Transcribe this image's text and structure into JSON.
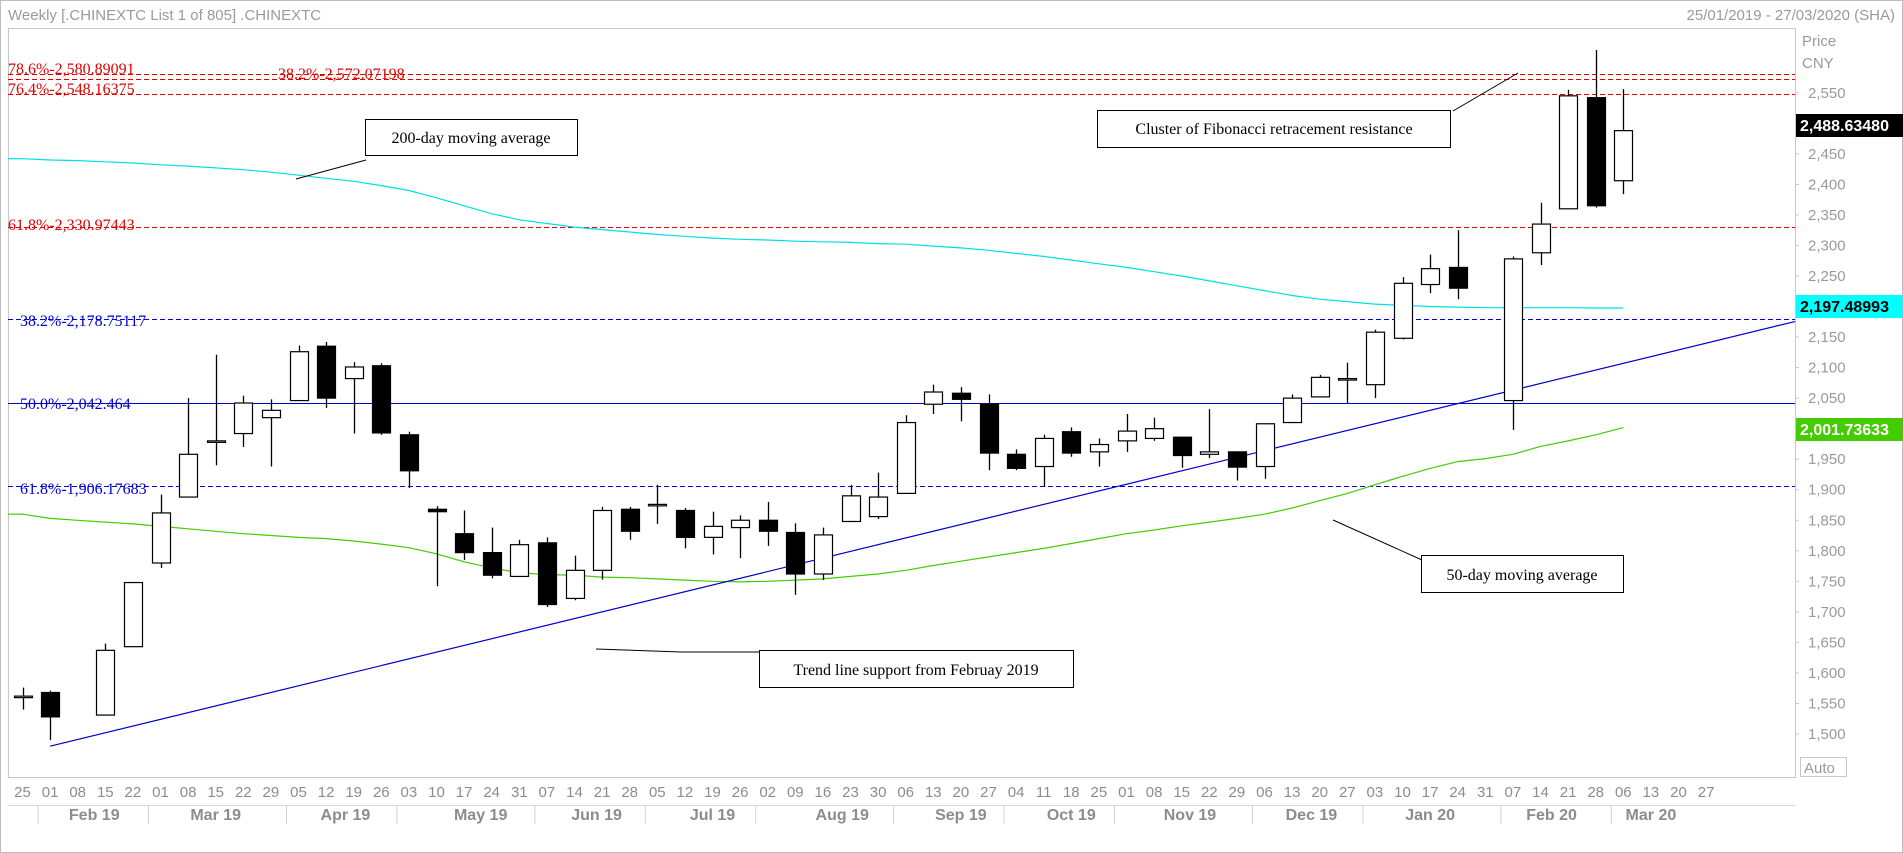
{
  "header": {
    "title": "Weekly [.CHINEXTC List 1 of 805] .CHINEXTC",
    "date_range": "25/01/2019 - 27/03/2020 (SHA)"
  },
  "axis": {
    "price_label": "Price",
    "currency_label": "CNY",
    "auto_label": "Auto",
    "y_ticks": [
      "2,550",
      "2,500",
      "2,450",
      "2,400",
      "2,350",
      "2,300",
      "2,250",
      "2,200",
      "2,150",
      "2,100",
      "2,050",
      "2,000",
      "1,950",
      "1,900",
      "1,850",
      "1,800",
      "1,750",
      "1,700",
      "1,650",
      "1,600",
      "1,550",
      "1,500"
    ],
    "x_day_labels": [
      "25",
      "01",
      "08",
      "15",
      "22",
      "01",
      "08",
      "15",
      "22",
      "29",
      "05",
      "12",
      "19",
      "26",
      "03",
      "10",
      "17",
      "24",
      "31",
      "07",
      "14",
      "21",
      "28",
      "05",
      "12",
      "19",
      "26",
      "02",
      "09",
      "16",
      "23",
      "30",
      "06",
      "13",
      "20",
      "27",
      "04",
      "11",
      "18",
      "25",
      "01",
      "08",
      "15",
      "22",
      "29",
      "06",
      "13",
      "20",
      "27",
      "03",
      "10",
      "17",
      "24",
      "31",
      "07",
      "14",
      "21",
      "28",
      "06",
      "13",
      "20",
      "27"
    ],
    "x_month_labels": [
      "Feb 19",
      "Mar 19",
      "Apr 19",
      "May 19",
      "Jun 19",
      "Jul 19",
      "Aug 19",
      "Sep 19",
      "Oct 19",
      "Nov 19",
      "Dec 19",
      "Jan 20",
      "Feb 20",
      "Mar 20"
    ]
  },
  "fib_labels": {
    "r786": "78.6%-2,580.89091",
    "r382_top": "38.2%-2,572.07198",
    "r764": "76.4%-2,548.16375",
    "r618_top": "61.8%-2,330.97443",
    "b382": "38.2%-2,178.75117",
    "b500": "50.0%-2,042.464",
    "b618": "61.8%-1,906.17683"
  },
  "annotations": {
    "ma200": "200-day moving average",
    "fib_cluster": "Cluster of Fibonacci retracement resistance",
    "ma50": "50-day moving average",
    "trend": "Trend line support from Februay 2019"
  },
  "tags": {
    "last_price": "2,488.63480",
    "ma200_value": "2,197.48993",
    "ma50_value": "2,001.73633"
  },
  "colors": {
    "fib_red": "#e00000",
    "fib_blue": "#0000d0",
    "ma200": "#00e0e0",
    "ma50": "#44cc00",
    "trend_line": "#0000cc",
    "candle_down": "#000000",
    "candle_up": "#ffffff",
    "tag_price_bg": "#000000",
    "tag_ma200_bg": "#00ffff",
    "tag_ma50_bg": "#44cc00"
  },
  "chart_data": {
    "type": "candlestick",
    "title": ".CHINEXTC",
    "interval": "weekly",
    "ylim": [
      1470,
      2640
    ],
    "grid": false,
    "week_labels": [
      "25 Jan 19",
      "01 Feb 19",
      "08 Feb 19",
      "15 Feb 19",
      "22 Feb 19",
      "01 Mar 19",
      "08 Mar 19",
      "15 Mar 19",
      "22 Mar 19",
      "29 Mar 19",
      "05 Apr 19",
      "12 Apr 19",
      "19 Apr 19",
      "26 Apr 19",
      "03 May 19",
      "10 May 19",
      "17 May 19",
      "24 May 19",
      "31 May 19",
      "07 Jun 19",
      "14 Jun 19",
      "21 Jun 19",
      "28 Jun 19",
      "05 Jul 19",
      "12 Jul 19",
      "19 Jul 19",
      "26 Jul 19",
      "02 Aug 19",
      "09 Aug 19",
      "16 Aug 19",
      "23 Aug 19",
      "30 Aug 19",
      "06 Sep 19",
      "13 Sep 19",
      "20 Sep 19",
      "27 Sep 19",
      "04 Oct 19",
      "11 Oct 19",
      "18 Oct 19",
      "25 Oct 19",
      "01 Nov 19",
      "08 Nov 19",
      "15 Nov 19",
      "22 Nov 19",
      "29 Nov 19",
      "06 Dec 19",
      "13 Dec 19",
      "20 Dec 19",
      "27 Dec 19",
      "03 Jan 20",
      "10 Jan 20",
      "17 Jan 20",
      "24 Jan 20",
      "31 Jan 20",
      "07 Feb 20",
      "14 Feb 20",
      "21 Feb 20",
      "28 Feb 20",
      "06 Mar 20",
      "13 Mar 20",
      "20 Mar 20",
      "27 Mar 20"
    ],
    "candles": [
      {
        "o": 1560,
        "h": 1576,
        "l": 1540,
        "c": 1562
      },
      {
        "o": 1568,
        "h": 1571,
        "l": 1490,
        "c": 1528
      },
      null,
      {
        "o": 1531,
        "h": 1648,
        "l": 1531,
        "c": 1637
      },
      {
        "o": 1643,
        "h": 1748,
        "l": 1643,
        "c": 1748
      },
      {
        "o": 1780,
        "h": 1892,
        "l": 1772,
        "c": 1862
      },
      {
        "o": 1888,
        "h": 2050,
        "l": 1888,
        "c": 1958
      },
      {
        "o": 1980,
        "h": 2121,
        "l": 1940,
        "c": 1980
      },
      {
        "o": 1992,
        "h": 2054,
        "l": 1970,
        "c": 2042
      },
      {
        "o": 2018,
        "h": 2048,
        "l": 1938,
        "c": 2030
      },
      {
        "o": 2046,
        "h": 2136,
        "l": 2046,
        "c": 2126
      },
      {
        "o": 2135,
        "h": 2142,
        "l": 2034,
        "c": 2050
      },
      {
        "o": 2082,
        "h": 2109,
        "l": 1992,
        "c": 2101
      },
      {
        "o": 2103,
        "h": 2107,
        "l": 1990,
        "c": 1993
      },
      {
        "o": 1990,
        "h": 1995,
        "l": 1903,
        "c": 1931
      },
      {
        "o": 1868,
        "h": 1873,
        "l": 1742,
        "c": 1864
      },
      {
        "o": 1828,
        "h": 1866,
        "l": 1785,
        "c": 1797
      },
      {
        "o": 1797,
        "h": 1838,
        "l": 1755,
        "c": 1760
      },
      {
        "o": 1758,
        "h": 1818,
        "l": 1758,
        "c": 1810
      },
      {
        "o": 1813,
        "h": 1822,
        "l": 1708,
        "c": 1712
      },
      {
        "o": 1722,
        "h": 1792,
        "l": 1719,
        "c": 1768
      },
      {
        "o": 1768,
        "h": 1872,
        "l": 1753,
        "c": 1866
      },
      {
        "o": 1868,
        "h": 1872,
        "l": 1818,
        "c": 1832
      },
      {
        "o": 1876,
        "h": 1908,
        "l": 1844,
        "c": 1876
      },
      {
        "o": 1866,
        "h": 1870,
        "l": 1804,
        "c": 1822
      },
      {
        "o": 1822,
        "h": 1864,
        "l": 1794,
        "c": 1840
      },
      {
        "o": 1838,
        "h": 1858,
        "l": 1788,
        "c": 1850
      },
      {
        "o": 1850,
        "h": 1880,
        "l": 1808,
        "c": 1832
      },
      {
        "o": 1830,
        "h": 1845,
        "l": 1728,
        "c": 1762
      },
      {
        "o": 1762,
        "h": 1838,
        "l": 1752,
        "c": 1826
      },
      {
        "o": 1848,
        "h": 1908,
        "l": 1848,
        "c": 1890
      },
      {
        "o": 1856,
        "h": 1928,
        "l": 1852,
        "c": 1888
      },
      {
        "o": 1894,
        "h": 2022,
        "l": 1894,
        "c": 2010
      },
      {
        "o": 2040,
        "h": 2072,
        "l": 2024,
        "c": 2060
      },
      {
        "o": 2058,
        "h": 2068,
        "l": 2012,
        "c": 2048
      },
      {
        "o": 2040,
        "h": 2056,
        "l": 1932,
        "c": 1960
      },
      {
        "o": 1958,
        "h": 1966,
        "l": 1932,
        "c": 1935
      },
      {
        "o": 1938,
        "h": 1990,
        "l": 1905,
        "c": 1984
      },
      {
        "o": 1995,
        "h": 2002,
        "l": 1954,
        "c": 1960
      },
      {
        "o": 1962,
        "h": 1984,
        "l": 1938,
        "c": 1974
      },
      {
        "o": 1980,
        "h": 2024,
        "l": 1962,
        "c": 1996
      },
      {
        "o": 1984,
        "h": 2018,
        "l": 1980,
        "c": 2000
      },
      {
        "o": 1986,
        "h": 1986,
        "l": 1936,
        "c": 1956
      },
      {
        "o": 1958,
        "h": 2032,
        "l": 1952,
        "c": 1962
      },
      {
        "o": 1962,
        "h": 1962,
        "l": 1915,
        "c": 1937
      },
      {
        "o": 1938,
        "h": 2008,
        "l": 1918,
        "c": 2008
      },
      {
        "o": 2010,
        "h": 2056,
        "l": 2010,
        "c": 2050
      },
      {
        "o": 2052,
        "h": 2088,
        "l": 2052,
        "c": 2084
      },
      {
        "o": 2082,
        "h": 2108,
        "l": 2042,
        "c": 2082
      },
      {
        "o": 2072,
        "h": 2162,
        "l": 2050,
        "c": 2158
      },
      {
        "o": 2148,
        "h": 2248,
        "l": 2146,
        "c": 2238
      },
      {
        "o": 2236,
        "h": 2285,
        "l": 2222,
        "c": 2262
      },
      {
        "o": 2264,
        "h": 2325,
        "l": 2212,
        "c": 2230
      },
      null,
      {
        "o": 2046,
        "h": 2282,
        "l": 1998,
        "c": 2278
      },
      {
        "o": 2288,
        "h": 2370,
        "l": 2268,
        "c": 2335
      },
      {
        "o": 2360,
        "h": 2555,
        "l": 2360,
        "c": 2545
      },
      {
        "o": 2542,
        "h": 2620,
        "l": 2362,
        "c": 2365
      },
      {
        "o": 2406,
        "h": 2556,
        "l": 2384,
        "c": 2488
      }
    ],
    "series": [
      {
        "name": "200-day moving average",
        "values": [
          2442,
          2440,
          2439,
          2437,
          2435,
          2432,
          2430,
          2427,
          2424,
          2420,
          2415,
          2410,
          2405,
          2398,
          2390,
          2378,
          2365,
          2352,
          2342,
          2336,
          2330,
          2326,
          2322,
          2318,
          2315,
          2312,
          2310,
          2309,
          2307,
          2306,
          2305,
          2303,
          2302,
          2299,
          2296,
          2292,
          2287,
          2282,
          2276,
          2270,
          2264,
          2257,
          2250,
          2242,
          2234,
          2226,
          2218,
          2212,
          2208,
          2204,
          2202,
          2200,
          2199,
          2198,
          2198,
          2198,
          2198,
          2197.5,
          2197.5
        ]
      },
      {
        "name": "50-day moving average",
        "values": [
          1860,
          1853,
          1850,
          1847,
          1844,
          1840,
          1836,
          1832,
          1828,
          1825,
          1822,
          1820,
          1816,
          1811,
          1805,
          1795,
          1782,
          1772,
          1764,
          1761,
          1760,
          1757,
          1756,
          1754,
          1752,
          1750,
          1749,
          1750,
          1752,
          1754,
          1758,
          1762,
          1768,
          1776,
          1783,
          1790,
          1797,
          1804,
          1812,
          1820,
          1828,
          1834,
          1841,
          1847,
          1853,
          1860,
          1870,
          1882,
          1894,
          1908,
          1922,
          1935,
          1946,
          1951,
          1958,
          1971,
          1980,
          1990,
          2001.7
        ]
      },
      {
        "name": "Trend line support from Februay 2019",
        "values": [
          1480,
          1491,
          1502,
          1513,
          1524,
          1535,
          1546,
          1557,
          1568,
          1579,
          1590,
          1601,
          1612,
          1623,
          1634,
          1645,
          1656,
          1667,
          1678,
          1689,
          1700,
          1711,
          1722,
          1733,
          1744,
          1755,
          1766,
          1777,
          1788,
          1799,
          1810,
          1821,
          1832,
          1843,
          1854,
          1865,
          1876,
          1887,
          1898,
          1909,
          1920,
          1931,
          1942,
          1953,
          1964,
          1975,
          1986,
          1997,
          2008,
          2019,
          2030,
          2041,
          2052
        ]
      }
    ],
    "fib_levels": [
      {
        "label": "78.6%",
        "value": 2580.89091,
        "color": "red"
      },
      {
        "label": "38.2%",
        "value": 2572.07198,
        "color": "red"
      },
      {
        "label": "76.4%",
        "value": 2548.16375,
        "color": "red"
      },
      {
        "label": "61.8%",
        "value": 2330.97443,
        "color": "red"
      },
      {
        "label": "38.2%",
        "value": 2178.75117,
        "color": "blue"
      },
      {
        "label": "50.0%",
        "value": 2042.464,
        "color": "blue"
      },
      {
        "label": "61.8%",
        "value": 1906.17683,
        "color": "blue"
      }
    ]
  }
}
